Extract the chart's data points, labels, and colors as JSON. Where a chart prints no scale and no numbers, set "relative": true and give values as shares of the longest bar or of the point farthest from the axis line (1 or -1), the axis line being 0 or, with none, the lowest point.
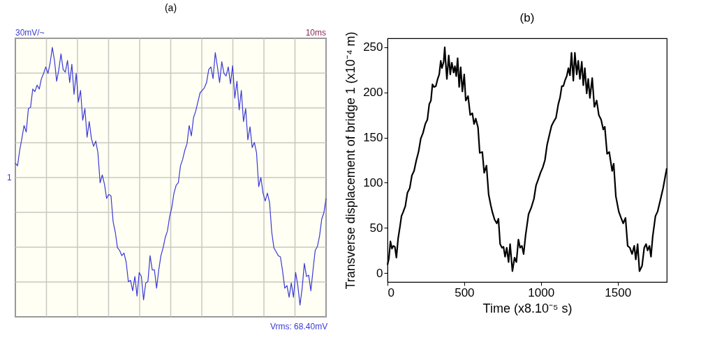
{
  "chart_data": [
    {
      "type": "line",
      "title": "(a)",
      "relative": true,
      "grid": true,
      "annotations": [
        "30mV/~",
        "10ms",
        "Vrms: 68.40mV",
        "1"
      ],
      "categories": [
        null,
        null,
        null,
        null,
        null,
        null,
        null,
        null,
        null,
        null,
        null,
        null,
        null,
        null,
        null,
        null,
        null,
        null,
        null,
        null,
        null,
        null,
        null,
        null,
        null,
        null,
        null,
        null,
        null,
        null,
        null,
        null,
        null,
        null,
        null,
        null,
        null,
        null,
        null,
        null,
        null,
        null,
        null,
        null,
        null,
        null,
        null,
        null,
        null,
        null,
        null,
        null,
        null,
        null,
        null,
        null,
        null,
        null,
        null,
        null,
        null,
        null,
        null,
        null,
        null,
        null,
        null,
        null,
        null,
        null,
        null,
        null,
        null,
        null,
        null,
        null,
        null,
        null,
        null,
        null,
        null,
        null,
        null,
        null,
        null,
        null,
        null,
        null,
        null,
        null,
        null,
        null,
        null,
        null,
        null,
        null,
        null,
        null,
        null,
        null,
        null,
        null,
        null,
        null,
        null,
        null,
        null,
        null,
        null,
        null,
        null,
        null,
        null,
        null,
        null,
        null,
        null,
        null,
        null,
        null,
        null,
        null,
        null,
        null,
        null,
        null,
        null,
        null,
        null,
        null,
        null,
        null,
        null,
        null,
        null,
        null,
        null,
        null,
        null,
        null,
        null,
        null,
        null,
        null
      ],
      "series": [
        {
          "color": "#3a3ad6",
          "values": [
            0.11,
            0.09,
            0.21,
            0.3,
            0.4,
            0.35,
            0.53,
            0.54,
            0.68,
            0.66,
            0.71,
            0.68,
            0.76,
            0.8,
            0.85,
            0.8,
            0.88,
            1.0,
            0.9,
            0.74,
            0.83,
            0.95,
            0.83,
            0.81,
            0.9,
            0.73,
            0.87,
            0.64,
            0.8,
            0.58,
            0.67,
            0.44,
            0.53,
            0.31,
            0.43,
            0.3,
            0.24,
            0.28,
            0.19,
            -0.04,
            0.02,
            -0.05,
            -0.16,
            -0.13,
            -0.14,
            -0.34,
            -0.42,
            -0.54,
            -0.56,
            -0.6,
            -0.58,
            -0.65,
            -0.8,
            -0.79,
            -0.87,
            -0.76,
            -0.91,
            -0.73,
            -0.76,
            -0.94,
            -0.81,
            -0.8,
            -0.6,
            -0.71,
            -0.71,
            -0.85,
            -0.71,
            -0.6,
            -0.54,
            -0.46,
            -0.41,
            -0.3,
            -0.23,
            -0.12,
            -0.06,
            -0.04,
            0.09,
            0.14,
            0.21,
            0.26,
            0.4,
            0.32,
            0.46,
            0.51,
            0.58,
            0.65,
            0.67,
            0.69,
            0.73,
            0.83,
            0.85,
            0.76,
            0.96,
            0.85,
            0.73,
            0.89,
            0.8,
            0.78,
            0.85,
            0.72,
            0.86,
            0.61,
            0.74,
            0.52,
            0.67,
            0.43,
            0.53,
            0.29,
            0.39,
            0.23,
            0.27,
            0.19,
            -0.07,
            0.0,
            -0.12,
            -0.18,
            -0.12,
            -0.19,
            -0.42,
            -0.54,
            -0.57,
            -0.6,
            -0.61,
            -0.72,
            -0.85,
            -0.83,
            -0.92,
            -0.81,
            -0.92,
            -0.73,
            -0.83,
            -0.98,
            -0.85,
            -0.66,
            -0.76,
            -0.75,
            -0.87,
            -0.71,
            -0.56,
            -0.53,
            -0.45,
            -0.32,
            -0.27,
            -0.16
          ]
        }
      ]
    },
    {
      "type": "line",
      "title": "(b)",
      "xlabel": "Time (x8.10⁻⁵ s)",
      "ylabel": "Transverse displacement of bridge 1 (x10⁻⁴ m)",
      "xlim": [
        0,
        1820
      ],
      "ylim": [
        -10,
        260
      ],
      "xticks": [
        0,
        500,
        1000,
        1500
      ],
      "yticks": [
        0,
        50,
        100,
        150,
        200,
        250
      ],
      "grid": false,
      "x": [
        0,
        9,
        19,
        29,
        38,
        48,
        58,
        69,
        81,
        91,
        101,
        116,
        130,
        145,
        159,
        173,
        188,
        202,
        217,
        231,
        246,
        260,
        272,
        283,
        293,
        303,
        315,
        327,
        337,
        347,
        355,
        366,
        373,
        380,
        387,
        399,
        409,
        419,
        431,
        439,
        448,
        457,
        467,
        477,
        488,
        500,
        510,
        525,
        539,
        553,
        564,
        575,
        590,
        601,
        618,
        630,
        645,
        659,
        673,
        684,
        698,
        712,
        723,
        734,
        746,
        756,
        766,
        777,
        789,
        799,
        814,
        828,
        840,
        853,
        864,
        876,
        887,
        900,
        919,
        936,
        954,
        968,
        983,
        997,
        1012,
        1026,
        1040,
        1055,
        1069,
        1084,
        1098,
        1113,
        1124,
        1136,
        1146,
        1156,
        1168,
        1179,
        1189,
        1199,
        1211,
        1221,
        1233,
        1243,
        1254,
        1266,
        1276,
        1286,
        1298,
        1308,
        1319,
        1334,
        1348,
        1363,
        1377,
        1392,
        1406,
        1416,
        1431,
        1445,
        1464,
        1474,
        1488,
        1507,
        1522,
        1536,
        1551,
        1565,
        1579,
        1594,
        1608,
        1618,
        1630,
        1642,
        1659,
        1673,
        1685,
        1695,
        1707,
        1717,
        1728,
        1746,
        1760,
        1777,
        1796,
        1811,
        1820
      ],
      "series": [
        {
          "color": "#000000",
          "values": [
            9,
            16,
            35,
            27,
            30,
            29,
            17,
            38,
            51,
            63,
            67,
            74,
            89,
            94,
            108,
            113,
            125,
            134,
            149,
            155,
            165,
            170,
            187,
            191,
            209,
            206,
            207,
            215,
            220,
            235,
            227,
            234,
            250,
            231,
            215,
            241,
            220,
            233,
            222,
            229,
            218,
            238,
            206,
            228,
            201,
            220,
            191,
            196,
            175,
            177,
            165,
            171,
            161,
            133,
            134,
            111,
            119,
            87,
            75,
            67,
            59,
            55,
            60,
            32,
            28,
            29,
            18,
            28,
            12,
            32,
            2,
            17,
            12,
            37,
            28,
            30,
            21,
            42,
            65,
            72,
            82,
            97,
            104,
            111,
            117,
            125,
            142,
            153,
            163,
            168,
            172,
            187,
            194,
            207,
            207,
            213,
            218,
            227,
            219,
            244,
            213,
            244,
            220,
            235,
            215,
            234,
            208,
            227,
            199,
            215,
            194,
            216,
            184,
            191,
            175,
            170,
            159,
            162,
            132,
            134,
            113,
            121,
            85,
            68,
            61,
            55,
            61,
            30,
            28,
            21,
            30,
            15,
            32,
            2,
            8,
            28,
            32,
            25,
            30,
            18,
            40,
            63,
            68,
            80,
            94,
            108,
            116
          ]
        }
      ]
    }
  ]
}
